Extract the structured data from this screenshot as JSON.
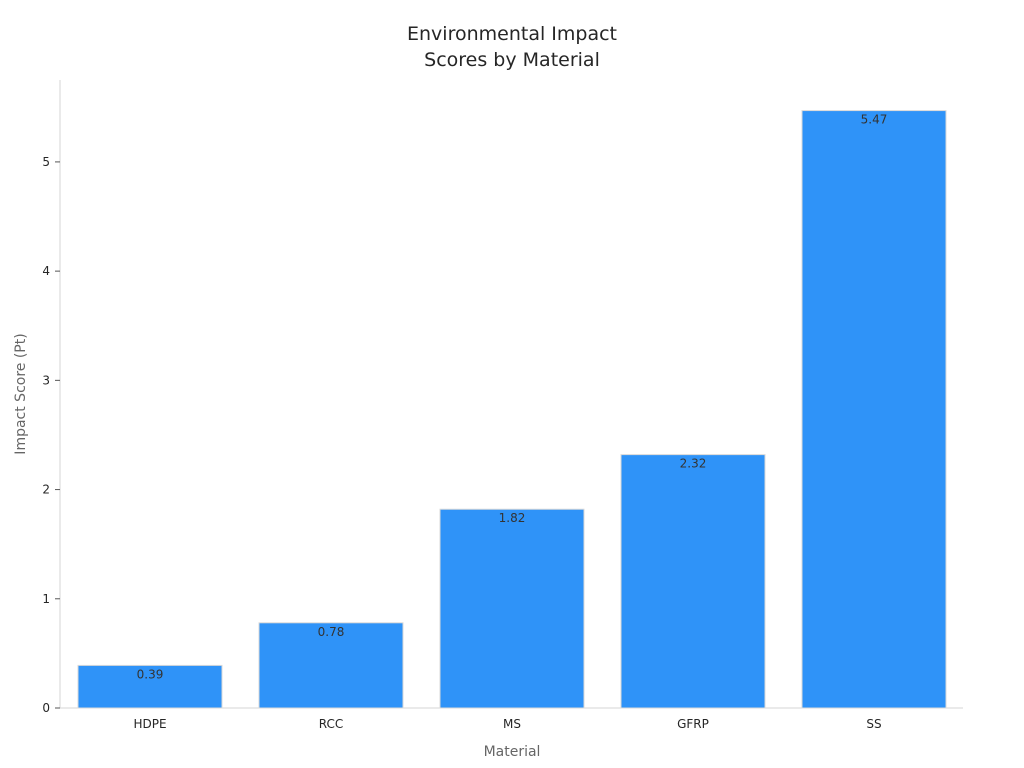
{
  "chart_data": {
    "type": "bar",
    "title_lines": [
      "Environmental Impact",
      "Scores by Material"
    ],
    "xlabel": "Material",
    "ylabel": "Impact Score (Pt)",
    "categories": [
      "HDPE",
      "RCC",
      "MS",
      "GFRP",
      "SS"
    ],
    "values": [
      0.39,
      0.78,
      1.82,
      2.32,
      5.47
    ],
    "data_labels": [
      "0.39",
      "0.78",
      "1.82",
      "2.32",
      "5.47"
    ],
    "yticks": [
      0,
      1,
      2,
      3,
      4,
      5
    ],
    "ylim": [
      0,
      5.75
    ],
    "bar_color": "#2f93f8",
    "grid": false,
    "legend": "none"
  }
}
